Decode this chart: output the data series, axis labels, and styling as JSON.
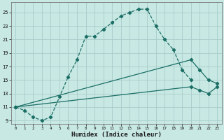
{
  "xlabel": "Humidex (Indice chaleur)",
  "bg_color": "#c8e8e4",
  "grid_color": "#a8ccca",
  "line_color": "#1a6e64",
  "xlim": [
    -0.5,
    23.5
  ],
  "ylim": [
    8.5,
    26.5
  ],
  "xticks": [
    0,
    1,
    2,
    3,
    4,
    5,
    6,
    7,
    8,
    9,
    10,
    11,
    12,
    13,
    14,
    15,
    16,
    17,
    18,
    19,
    20,
    21,
    22,
    23
  ],
  "yticks": [
    9,
    11,
    13,
    15,
    17,
    19,
    21,
    23,
    25
  ],
  "line1_x": [
    0,
    1,
    2,
    3,
    4,
    5,
    6,
    7,
    8,
    9,
    10,
    11,
    12,
    13,
    14,
    15,
    16,
    17,
    18,
    19,
    20
  ],
  "line1_y": [
    11,
    10.5,
    9.5,
    9,
    9.5,
    12.5,
    15.5,
    18,
    21.5,
    21.5,
    22.5,
    23.5,
    24.5,
    25,
    25.5,
    25.5,
    23,
    21,
    19.5,
    16.5,
    15
  ],
  "line2_x": [
    0,
    20,
    21,
    22,
    23
  ],
  "line2_y": [
    11,
    18,
    16.5,
    15,
    14.5
  ],
  "line3_x": [
    0,
    20,
    21,
    22,
    23
  ],
  "line3_y": [
    11,
    14,
    13.5,
    13,
    14
  ]
}
